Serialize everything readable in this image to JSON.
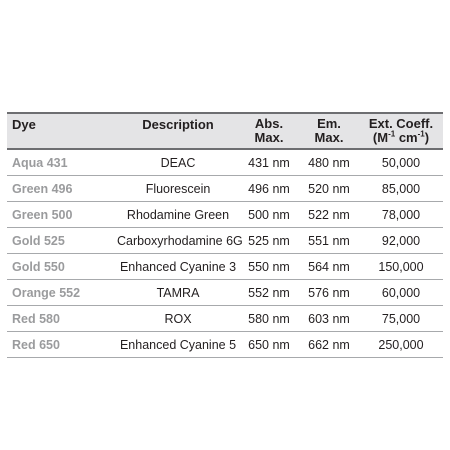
{
  "table": {
    "headers": {
      "dye": "Dye",
      "description": "Description",
      "abs_line1": "Abs.",
      "abs_line2": "Max.",
      "em_line1": "Em.",
      "em_line2": "Max.",
      "ext_line1": "Ext. Coeff.",
      "ext_unit_m": "(M",
      "ext_unit_m_sup": "-1",
      "ext_unit_cm": " cm",
      "ext_unit_cm_sup": "-1",
      "ext_unit_close": ")"
    },
    "rows": [
      {
        "dye": "Aqua 431",
        "description": "DEAC",
        "abs": "431 nm",
        "em": "480 nm",
        "ext": "50,000"
      },
      {
        "dye": "Green 496",
        "description": "Fluorescein",
        "abs": "496 nm",
        "em": "520 nm",
        "ext": "85,000"
      },
      {
        "dye": "Green 500",
        "description": "Rhodamine Green",
        "abs": "500 nm",
        "em": "522 nm",
        "ext": "78,000"
      },
      {
        "dye": "Gold 525",
        "description": "Carboxyrhodamine 6G",
        "abs": "525 nm",
        "em": "551 nm",
        "ext": "92,000"
      },
      {
        "dye": "Gold 550",
        "description": "Enhanced Cyanine 3",
        "abs": "550 nm",
        "em": "564 nm",
        "ext": "150,000"
      },
      {
        "dye": "Orange 552",
        "description": "TAMRA",
        "abs": "552 nm",
        "em": "576 nm",
        "ext": "60,000"
      },
      {
        "dye": "Red 580",
        "description": "ROX",
        "abs": "580 nm",
        "em": "603 nm",
        "ext": "75,000"
      },
      {
        "dye": "Red 650",
        "description": "Enhanced Cyanine 5",
        "abs": "650 nm",
        "em": "662 nm",
        "ext": "250,000"
      }
    ]
  },
  "colors": {
    "header_bg": "#e4e4e6",
    "rule": "#6d6e71",
    "row_divider": "#a7a9ac",
    "dye_name": "#9a9b9d",
    "text": "#231f20"
  }
}
